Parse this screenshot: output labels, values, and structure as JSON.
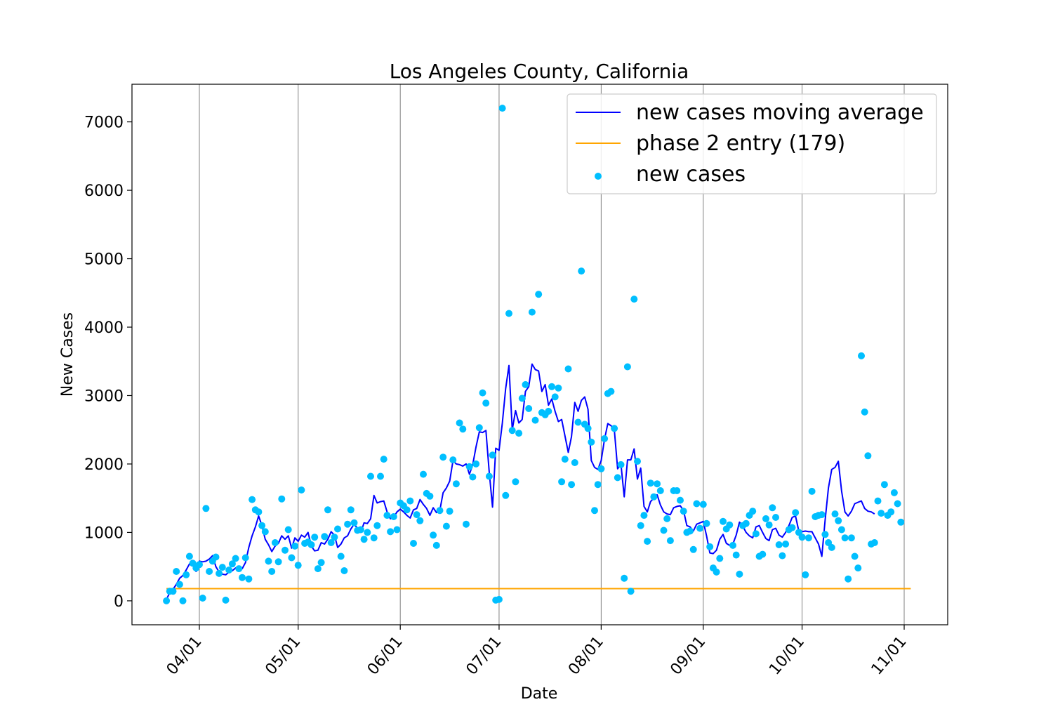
{
  "chart_data": {
    "type": "scatter",
    "title": "Los Angeles County, California",
    "xlabel": "Date",
    "ylabel": "New Cases",
    "x_start": "2020-03-22",
    "x_end": "2020-11-03",
    "x_ticks": [
      "04/01",
      "05/01",
      "06/01",
      "07/01",
      "08/01",
      "09/01",
      "10/01",
      "11/01"
    ],
    "y_ticks": [
      0,
      1000,
      2000,
      3000,
      4000,
      5000,
      6000,
      7000
    ],
    "ylim": [
      -350,
      7550
    ],
    "grid": "vertical lines at month starts",
    "legend_position": "upper right",
    "series": [
      {
        "name": "new cases moving average",
        "kind": "line",
        "color": "#0000ff",
        "values": [
          20,
          120,
          170,
          240,
          330,
          370,
          450,
          540,
          520,
          430,
          580,
          570,
          580,
          610,
          660,
          500,
          420,
          390,
          380,
          420,
          440,
          480,
          500,
          470,
          560,
          780,
          950,
          1080,
          1240,
          1100,
          900,
          820,
          720,
          800,
          840,
          950,
          900,
          950,
          770,
          920,
          870,
          960,
          930,
          1000,
          800,
          730,
          740,
          850,
          830,
          900,
          1010,
          960,
          780,
          830,
          920,
          950,
          1050,
          1120,
          1060,
          1000,
          1140,
          1130,
          1200,
          1540,
          1430,
          1450,
          1460,
          1300,
          1200,
          1220,
          1300,
          1340,
          1300,
          1250,
          1210,
          1330,
          1350,
          1480,
          1410,
          1350,
          1250,
          1360,
          1290,
          1320,
          1580,
          1650,
          1750,
          2050,
          2000,
          1990,
          1970,
          2000,
          1850,
          1990,
          2250,
          2470,
          2460,
          2490,
          1880,
          1370,
          2230,
          2200,
          2600,
          3100,
          3440,
          2500,
          2780,
          2600,
          2650,
          3060,
          3130,
          3460,
          3380,
          3360,
          3060,
          3160,
          2860,
          2950,
          2770,
          2620,
          2650,
          2410,
          2170,
          2400,
          2900,
          2770,
          2930,
          2980,
          2800,
          2050,
          1950,
          1920,
          2050,
          2360,
          2590,
          2560,
          2500,
          1930,
          2000,
          1520,
          2060,
          2060,
          2220,
          1780,
          1940,
          1380,
          1300,
          1450,
          1500,
          1550,
          1400,
          1300,
          1270,
          1260,
          1360,
          1380,
          1390,
          1320,
          1100,
          1080,
          1020,
          1120,
          1140,
          1160,
          950,
          700,
          690,
          740,
          900,
          970,
          840,
          810,
          830,
          960,
          1150,
          1090,
          1000,
          950,
          920,
          1080,
          1100,
          1000,
          910,
          880,
          1040,
          1060,
          960,
          930,
          1000,
          1100,
          1220,
          1240,
          1020,
          1010,
          1020,
          1010,
          1010,
          920,
          830,
          650,
          1180,
          1650,
          1920,
          1950,
          2040,
          1600,
          1300,
          1240,
          1310,
          1420,
          1440,
          1460,
          1350,
          1310,
          1300,
          1270
        ],
        "_scatter_note": null
      },
      {
        "name": "phase 2 entry (179)",
        "kind": "hline",
        "color": "#ffa500",
        "values": [
          179
        ]
      },
      {
        "name": "new cases",
        "kind": "scatter",
        "color": "#00bfff",
        "values": [
          0,
          140,
          140,
          430,
          240,
          0,
          380,
          650,
          550,
          480,
          530,
          40,
          1350,
          430,
          580,
          640,
          400,
          490,
          10,
          450,
          540,
          620,
          470,
          340,
          630,
          320,
          1480,
          1330,
          1300,
          1100,
          1010,
          580,
          430,
          850,
          570,
          1490,
          740,
          1040,
          630,
          800,
          520,
          1620,
          840,
          860,
          820,
          930,
          470,
          560,
          940,
          1330,
          850,
          930,
          1050,
          650,
          440,
          1120,
          1330,
          1140,
          1030,
          1040,
          900,
          1000,
          1820,
          920,
          1100,
          1820,
          2070,
          1250,
          1010,
          1230,
          1040,
          1430,
          1390,
          1330,
          1460,
          840,
          1260,
          1170,
          1850,
          1570,
          1530,
          960,
          810,
          1320,
          2100,
          1090,
          1310,
          2060,
          1710,
          2600,
          2510,
          1120,
          1960,
          1810,
          2000,
          2530,
          3040,
          2890,
          1820,
          2130,
          10,
          20,
          7200,
          1540,
          4200,
          2490,
          1740,
          2450,
          2960,
          3160,
          2810,
          4220,
          2640,
          4480,
          2750,
          2720,
          2770,
          3130,
          2980,
          3110,
          1740,
          2070,
          3390,
          1700,
          2020,
          2610,
          4820,
          2580,
          2520,
          2320,
          1320,
          1700,
          1930,
          2370,
          3030,
          3060,
          2520,
          1800,
          1990,
          330,
          3420,
          140,
          4410,
          2040,
          1100,
          1250,
          870,
          1720,
          1520,
          1710,
          1610,
          1030,
          1200,
          880,
          1610,
          1610,
          1470,
          1310,
          1000,
          1020,
          750,
          1420,
          1060,
          1410,
          1130,
          790,
          480,
          420,
          620,
          1160,
          1050,
          1110,
          810,
          670,
          390,
          1100,
          1130,
          1250,
          1310,
          980,
          650,
          680,
          1200,
          1110,
          1360,
          1220,
          820,
          660,
          830,
          1040,
          1070,
          1290,
          1000,
          930,
          380,
          920,
          1600,
          1230,
          1250,
          1260,
          970,
          850,
          780,
          1270,
          1170,
          1040,
          920,
          320,
          920,
          650,
          480,
          3580,
          2760,
          2120,
          830,
          850,
          1460,
          1280,
          1700,
          1250,
          1300,
          1580,
          1420,
          1150
        ]
      }
    ]
  }
}
